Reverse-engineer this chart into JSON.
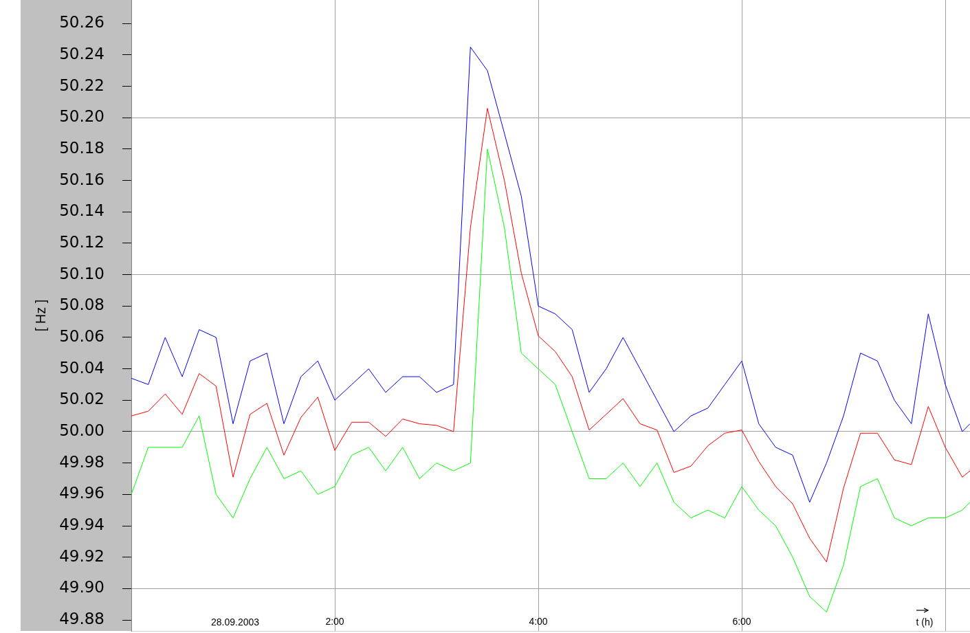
{
  "chart_data": {
    "type": "line",
    "xlabel": "t (h)",
    "ylabel": "[ Hz ]",
    "annotations": [
      "28.09.2003"
    ],
    "x": [
      0,
      0.167,
      0.333,
      0.5,
      0.667,
      0.833,
      1,
      1.167,
      1.333,
      1.5,
      1.667,
      1.833,
      2,
      2.167,
      2.333,
      2.5,
      2.667,
      2.833,
      3,
      3.167,
      3.333,
      3.5,
      3.667,
      3.833,
      4,
      4.167,
      4.333,
      4.5,
      4.667,
      4.833,
      5,
      5.167,
      5.333,
      5.5,
      5.667,
      5.833,
      6,
      6.167,
      6.333,
      6.5,
      6.667,
      6.833,
      7,
      7.167,
      7.333,
      7.5,
      7.667,
      7.833,
      8,
      8.167,
      8.243
    ],
    "series": [
      {
        "color": "#0000ff",
        "values": [
          50.034,
          50.03,
          50.06,
          50.035,
          50.065,
          50.06,
          50.005,
          50.045,
          50.05,
          50.005,
          50.035,
          50.045,
          50.02,
          50.03,
          50.04,
          50.025,
          50.035,
          50.035,
          50.025,
          50.03,
          50.245,
          50.23,
          50.19,
          50.15,
          50.08,
          50.075,
          50.065,
          50.025,
          50.04,
          50.06,
          50.04,
          50.02,
          50.0,
          50.01,
          50.015,
          50.03,
          50.045,
          50.005,
          49.99,
          49.985,
          49.955,
          49.98,
          50.01,
          50.05,
          50.045,
          50.02,
          50.005,
          50.075,
          50.03,
          50.0,
          50.005
        ]
      },
      {
        "color": "#ff0000",
        "values": [
          50.01,
          50.013,
          50.024,
          50.011,
          50.037,
          50.029,
          49.971,
          50.011,
          50.018,
          49.985,
          50.009,
          50.022,
          49.988,
          50.006,
          50.006,
          49.997,
          50.008,
          50.005,
          50.004,
          50.0,
          50.13,
          50.206,
          50.16,
          50.101,
          50.061,
          50.051,
          50.035,
          50.001,
          50.011,
          50.021,
          50.005,
          50.001,
          49.974,
          49.978,
          49.991,
          49.999,
          50.001,
          49.981,
          49.965,
          49.954,
          49.932,
          49.917,
          49.964,
          49.999,
          49.999,
          49.982,
          49.979,
          50.016,
          49.99,
          49.971,
          49.975
        ]
      },
      {
        "color": "#00ff00",
        "values": [
          49.96,
          49.99,
          49.99,
          49.99,
          50.01,
          49.96,
          49.945,
          49.97,
          49.99,
          49.97,
          49.975,
          49.96,
          49.965,
          49.985,
          49.99,
          49.975,
          49.99,
          49.97,
          49.98,
          49.975,
          49.98,
          50.18,
          50.13,
          50.05,
          50.04,
          50.03,
          50.0,
          49.97,
          49.97,
          49.98,
          49.965,
          49.98,
          49.955,
          49.945,
          49.95,
          49.945,
          49.965,
          49.95,
          49.94,
          49.92,
          49.895,
          49.885,
          49.915,
          49.965,
          49.97,
          49.945,
          49.94,
          49.945,
          49.945,
          49.95,
          49.955
        ]
      }
    ],
    "xlim": [
      0,
      8.243
    ],
    "xticks": [
      {
        "value": 2,
        "label": "2:00"
      },
      {
        "value": 4,
        "label": "4:00"
      },
      {
        "value": 6,
        "label": "6:00"
      },
      {
        "value": 8,
        "label": null
      }
    ],
    "ylim": [
      49.873,
      50.275
    ],
    "yticks": [
      {
        "value": 49.88,
        "label": "49.88"
      },
      {
        "value": 49.9,
        "label": "49.90"
      },
      {
        "value": 49.92,
        "label": "49.92"
      },
      {
        "value": 49.94,
        "label": "49.94"
      },
      {
        "value": 49.96,
        "label": "49.96"
      },
      {
        "value": 49.98,
        "label": "49.98"
      },
      {
        "value": 50,
        "label": "50.00"
      },
      {
        "value": 50.02,
        "label": "50.02"
      },
      {
        "value": 50.04,
        "label": "50.04"
      },
      {
        "value": 50.06,
        "label": "50.06"
      },
      {
        "value": 50.08,
        "label": "50.08"
      },
      {
        "value": 50.1,
        "label": "50.10"
      },
      {
        "value": 50.12,
        "label": "50.12"
      },
      {
        "value": 50.14,
        "label": "50.14"
      },
      {
        "value": 50.16,
        "label": "50.16"
      },
      {
        "value": 50.18,
        "label": "50.18"
      },
      {
        "value": 50.2,
        "label": "50.20"
      },
      {
        "value": 50.22,
        "label": "50.22"
      },
      {
        "value": 50.24,
        "label": "50.24"
      },
      {
        "value": 50.26,
        "label": "50.26"
      }
    ],
    "grid": true,
    "marker": "none"
  }
}
